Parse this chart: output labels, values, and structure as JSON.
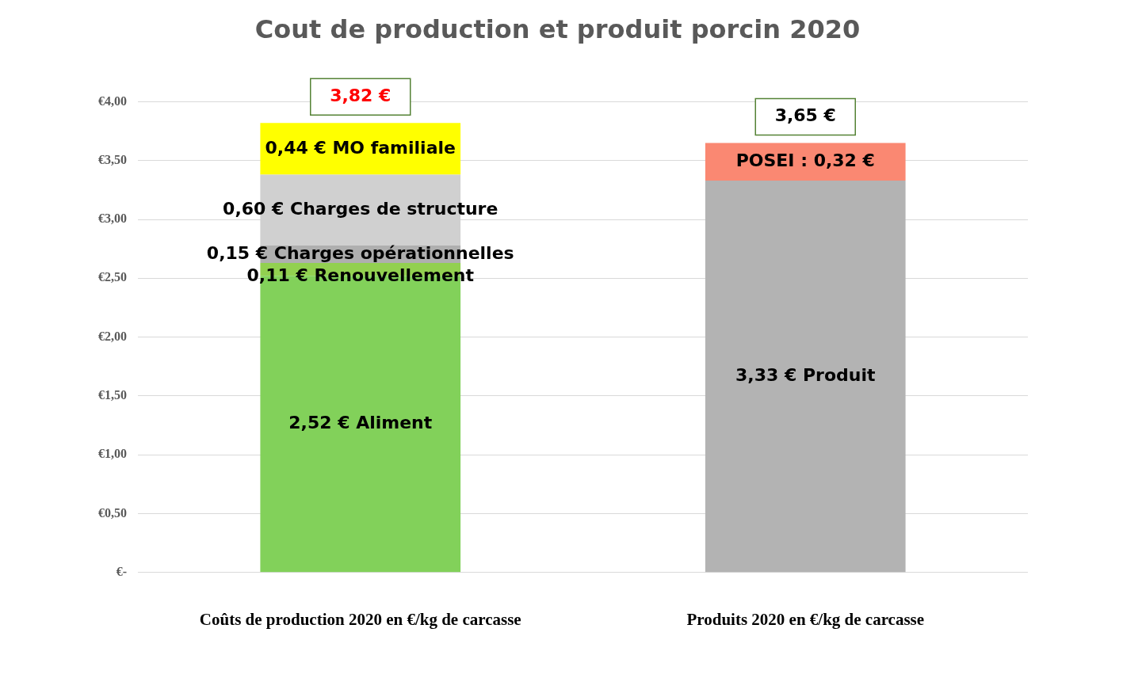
{
  "chart_data": {
    "type": "bar",
    "title": "Cout de production et produit porcin 2020",
    "categories": [
      "Coûts de production 2020 en €/kg de carcasse",
      "Produits 2020 en €/kg de carcasse"
    ],
    "stacked": true,
    "series": [
      {
        "color": "#82d15a",
        "values": [
          2.52,
          null
        ],
        "value_labels": [
          "2,52 € Aliment",
          null
        ]
      },
      {
        "color": "#92d050",
        "values": [
          0.11,
          null
        ],
        "value_labels": [
          "0,11 € Renouvellement",
          null
        ]
      },
      {
        "color": "#afafaf",
        "values": [
          0.15,
          null
        ],
        "value_labels": [
          "0,15 € Charges opérationnelles",
          null
        ]
      },
      {
        "color": "#d0d0d0",
        "values": [
          0.6,
          null
        ],
        "value_labels": [
          "0,60 € Charges de structure",
          null
        ]
      },
      {
        "color": "#ffff00",
        "values": [
          0.44,
          null
        ],
        "value_labels": [
          "0,44 € MO familiale",
          null
        ]
      },
      {
        "color": "#b3b3b3",
        "values": [
          null,
          3.33
        ],
        "value_labels": [
          null,
          "3,33 € Produit"
        ]
      },
      {
        "color": "#fa8872",
        "values": [
          null,
          0.32
        ],
        "value_labels": [
          null,
          "POSEI : 0,32 €"
        ]
      }
    ],
    "totals": [
      "3,82 €",
      "3,65 €"
    ],
    "ylim": [
      0,
      4
    ],
    "yticks": [
      {
        "value": 0,
        "label": "€-"
      },
      {
        "value": 0.5,
        "label": "€0,50"
      },
      {
        "value": 1,
        "label": "€1,00"
      },
      {
        "value": 1.5,
        "label": "€1,50"
      },
      {
        "value": 2,
        "label": "€2,00"
      },
      {
        "value": 2.5,
        "label": "€2,50"
      },
      {
        "value": 3,
        "label": "€3,00"
      },
      {
        "value": 3.5,
        "label": "€3,50"
      },
      {
        "value": 4,
        "label": "€4,00"
      }
    ],
    "grid": "y",
    "legend": false
  }
}
